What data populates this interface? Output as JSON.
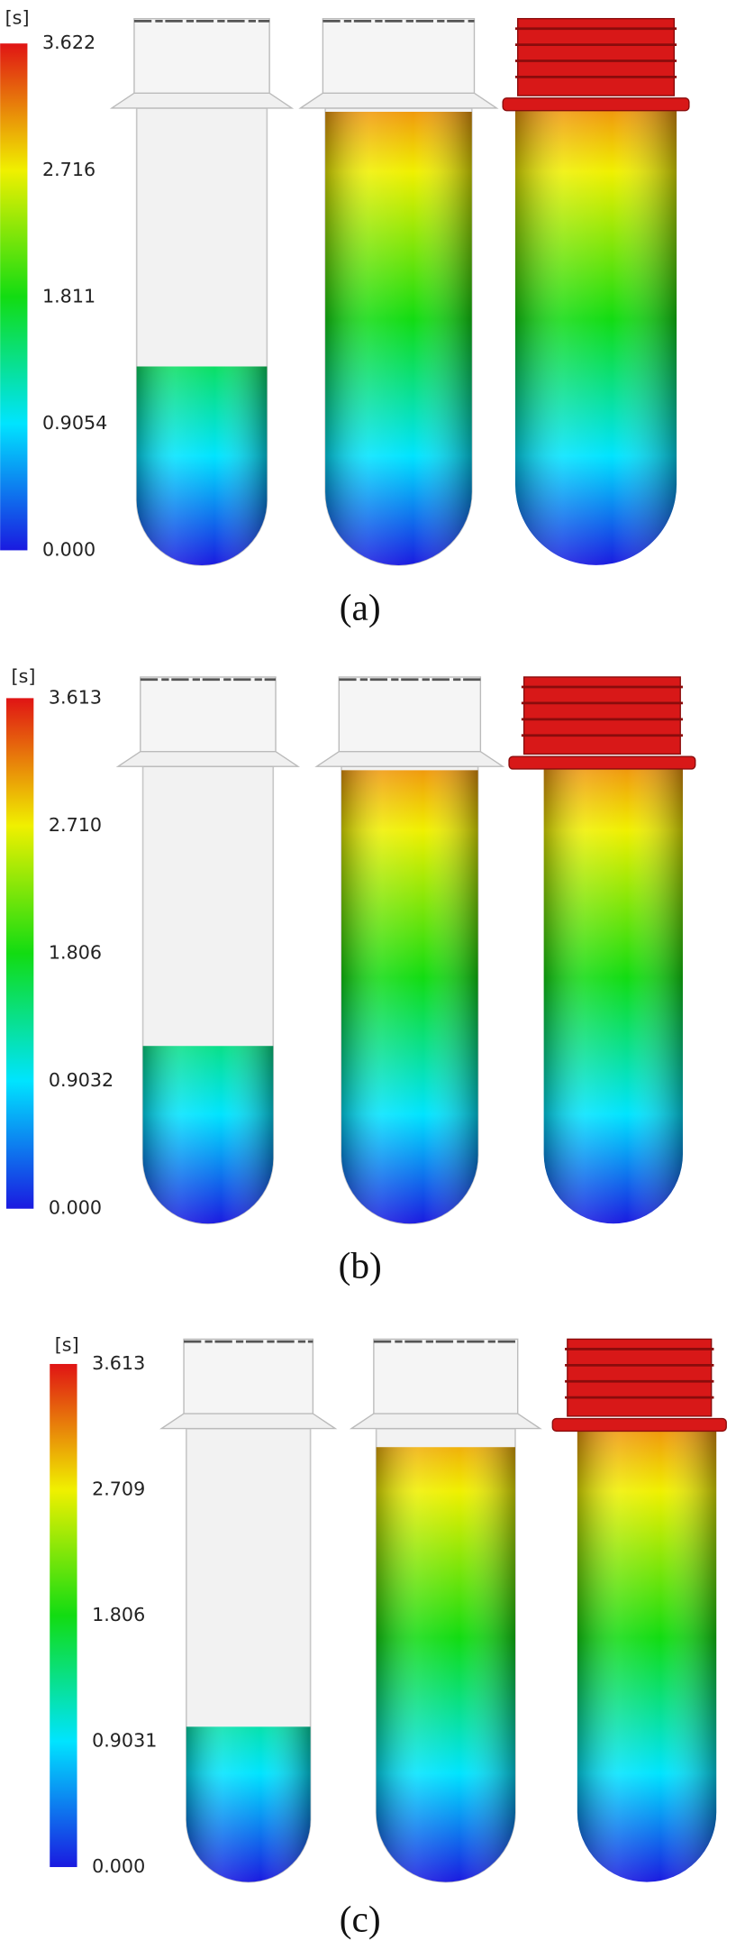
{
  "panels": [
    {
      "unit": "[s]",
      "scale_labels": [
        "3.622",
        "2.716",
        "1.811",
        "0.9054",
        "0.000"
      ],
      "caption": "(a)"
    },
    {
      "unit": "[s]",
      "scale_labels": [
        "3.613",
        "2.710",
        "1.806",
        "0.9032",
        "0.000"
      ],
      "caption": "(b)"
    },
    {
      "unit": "[s]",
      "scale_labels": [
        "3.613",
        "2.709",
        "1.806",
        "0.9031",
        "0.000"
      ],
      "caption": "(c)"
    }
  ]
}
